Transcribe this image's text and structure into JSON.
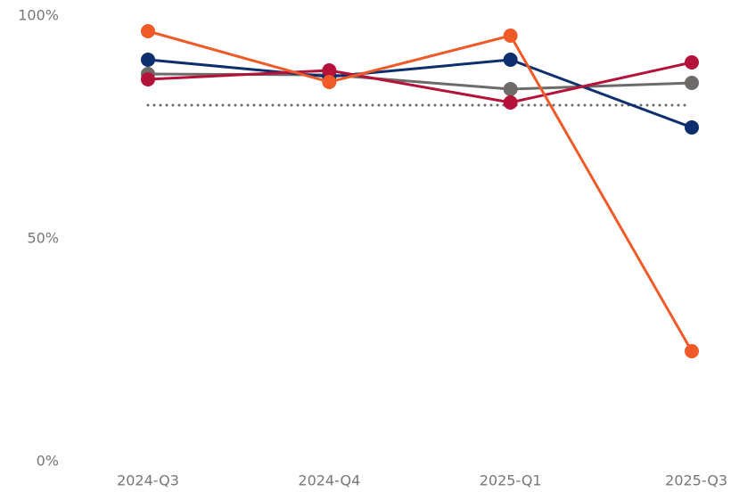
{
  "chart_data": {
    "type": "line",
    "categories": [
      "2024-Q3",
      "2024-Q4",
      "2025-Q1",
      "2025-Q3"
    ],
    "series": [
      {
        "color": "#6e6a6a",
        "values": [
          87,
          86.8,
          83.6,
          85
        ]
      },
      {
        "color": "#0d2f6e",
        "values": [
          90.2,
          86.4,
          90.2,
          75
        ]
      },
      {
        "color": "#b5123a",
        "values": [
          85.8,
          87.8,
          80.6,
          89.6
        ]
      },
      {
        "color": "#f05a28",
        "values": [
          96.6,
          85.2,
          95.6,
          24.8
        ]
      }
    ],
    "reference_line": {
      "value": 80,
      "color": "#6e6a6a"
    },
    "ylim": [
      0,
      100
    ],
    "yticks": [
      {
        "value": 0,
        "label": "0%"
      },
      {
        "value": 50,
        "label": "50%"
      },
      {
        "value": 100,
        "label": "100%"
      }
    ]
  }
}
